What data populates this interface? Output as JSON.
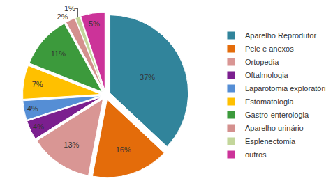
{
  "chart_data": {
    "type": "pie",
    "categories": [
      "Aparelho Reprodutor",
      "Pele e anexos",
      "Ortopedia",
      "Oftalmologia",
      "Laparotomia exploratóri",
      "Estomatologia",
      "Gastro-enterologia",
      "Aparelho urinário",
      "Esplenectomia",
      "outros"
    ],
    "values": [
      37,
      16,
      13,
      4,
      4,
      7,
      11,
      2,
      1,
      5
    ],
    "value_labels": [
      "37%",
      "16%",
      "13%",
      "4%",
      "4%",
      "7%",
      "11%",
      "2%",
      "1%",
      "5%"
    ],
    "colors": [
      "#31849b",
      "#e46c0a",
      "#d99694",
      "#7b1f8f",
      "#558ed5",
      "#ffc000",
      "#3c9a3c",
      "#d4908e",
      "#c3d69b",
      "#cc3399"
    ],
    "data_labels": true,
    "legend": "right"
  }
}
